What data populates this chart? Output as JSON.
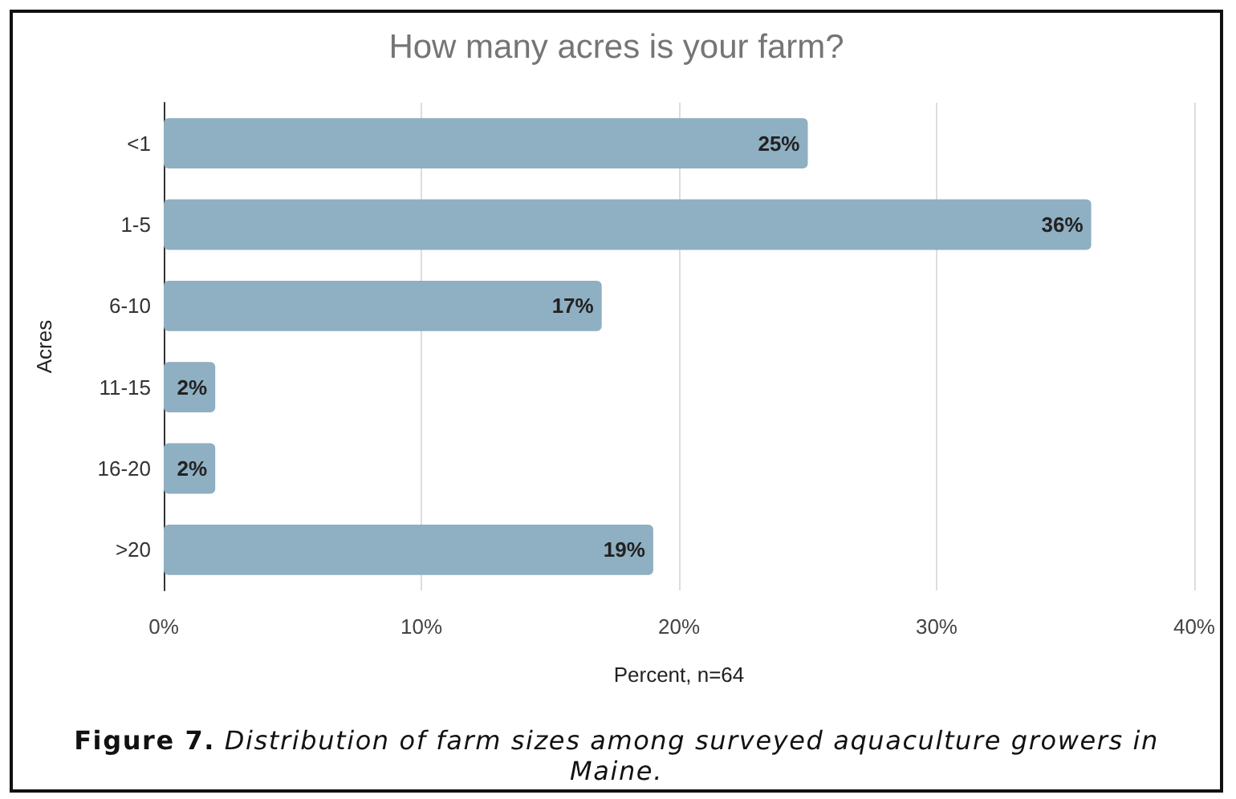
{
  "chart_data": {
    "type": "bar",
    "orientation": "horizontal",
    "title": "How many acres is your farm?",
    "xlabel": "Percent, n=64",
    "ylabel": "Acres",
    "categories": [
      "<1",
      "1-5",
      "6-10",
      "11-15",
      "16-20",
      ">20"
    ],
    "values": [
      25,
      36,
      17,
      2,
      2,
      19
    ],
    "color": "#8fafc2",
    "value_labels": [
      "25%",
      "36%",
      "17%",
      "2%",
      "2%",
      "19%"
    ],
    "xlim": [
      0,
      40
    ],
    "xticks": [
      {
        "value": 0,
        "label": "0%"
      },
      {
        "value": 10,
        "label": "10%"
      },
      {
        "value": 20,
        "label": "20%"
      },
      {
        "value": 30,
        "label": "30%"
      },
      {
        "value": 40,
        "label": "40%"
      }
    ],
    "grid": "x",
    "annotations": [
      "Figure 7. Distribution of farm sizes among surveyed aquaculture growers in Maine."
    ]
  }
}
